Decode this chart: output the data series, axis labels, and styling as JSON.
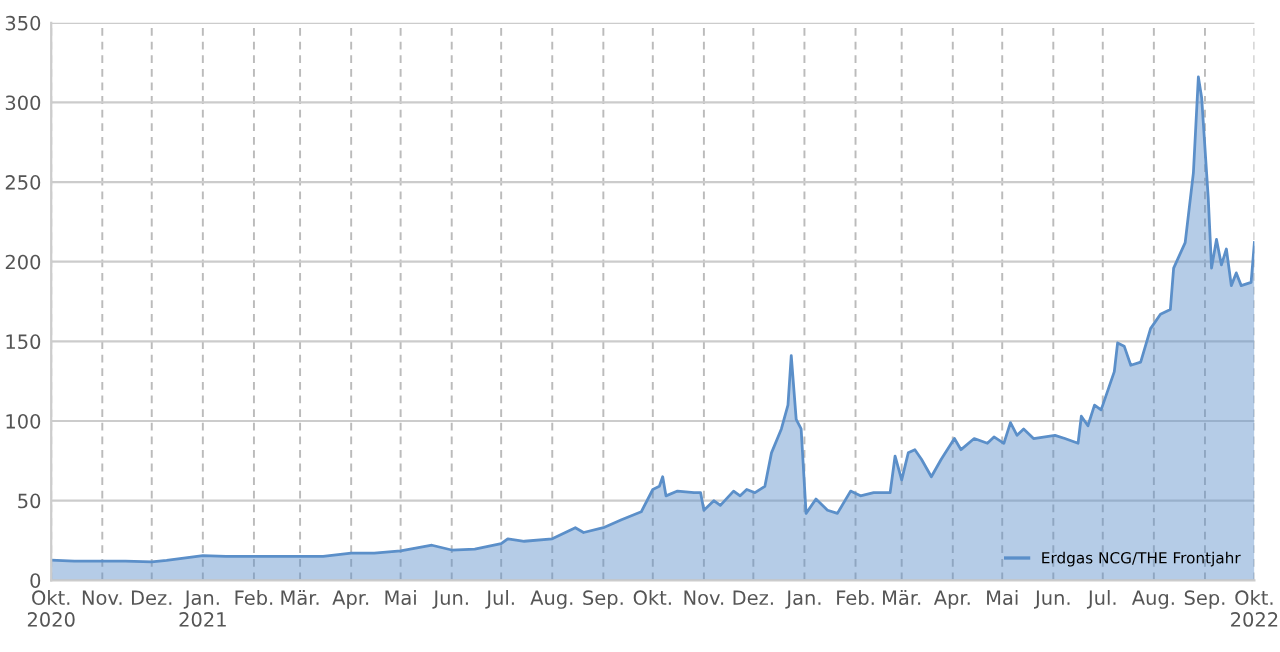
{
  "chart_data": {
    "type": "area",
    "legend": "bottom right",
    "grid": true,
    "xlim": [
      "2020-10-01",
      "2022-10-01"
    ],
    "xticks": [
      {
        "value": "2020-10-01",
        "label": "Okt.\n2020"
      },
      {
        "value": "2020-11-01",
        "label": "Nov."
      },
      {
        "value": "2020-12-01",
        "label": "Dez."
      },
      {
        "value": "2021-01-01",
        "label": "Jan.\n2021"
      },
      {
        "value": "2021-02-01",
        "label": "Feb."
      },
      {
        "value": "2021-03-01",
        "label": "Mär."
      },
      {
        "value": "2021-04-01",
        "label": "Apr."
      },
      {
        "value": "2021-05-01",
        "label": "Mai"
      },
      {
        "value": "2021-06-01",
        "label": "Jun."
      },
      {
        "value": "2021-07-01",
        "label": "Jul."
      },
      {
        "value": "2021-08-01",
        "label": "Aug."
      },
      {
        "value": "2021-09-01",
        "label": "Sep."
      },
      {
        "value": "2021-10-01",
        "label": "Okt."
      },
      {
        "value": "2021-11-01",
        "label": "Nov."
      },
      {
        "value": "2021-12-01",
        "label": "Dez."
      },
      {
        "value": "2022-01-01",
        "label": "Jan."
      },
      {
        "value": "2022-02-01",
        "label": "Feb."
      },
      {
        "value": "2022-03-01",
        "label": "Mär."
      },
      {
        "value": "2022-04-01",
        "label": "Apr."
      },
      {
        "value": "2022-05-01",
        "label": "Mai"
      },
      {
        "value": "2022-06-01",
        "label": "Jun."
      },
      {
        "value": "2022-07-01",
        "label": "Jul."
      },
      {
        "value": "2022-08-01",
        "label": "Aug."
      },
      {
        "value": "2022-09-01",
        "label": "Sep."
      },
      {
        "value": "2022-10-01",
        "label": "Okt.\n2022"
      }
    ],
    "ylim": [
      0,
      350
    ],
    "yticks": [
      0,
      50,
      100,
      150,
      200,
      250,
      300,
      350
    ],
    "series": [
      {
        "name": "Erdgas NCG/THE Frontjahr",
        "color": "#5b8fc9",
        "x": [
          "2020-10-01",
          "2020-10-15",
          "2020-11-01",
          "2020-11-15",
          "2020-12-01",
          "2020-12-10",
          "2021-01-01",
          "2021-01-15",
          "2021-02-01",
          "2021-03-01",
          "2021-03-15",
          "2021-04-01",
          "2021-04-15",
          "2021-05-01",
          "2021-05-20",
          "2021-06-01",
          "2021-06-15",
          "2021-07-01",
          "2021-07-05",
          "2021-07-15",
          "2021-08-01",
          "2021-08-15",
          "2021-08-20",
          "2021-09-01",
          "2021-09-12",
          "2021-09-24",
          "2021-10-01",
          "2021-10-05",
          "2021-10-07",
          "2021-10-09",
          "2021-10-16",
          "2021-10-26",
          "2021-10-30",
          "2021-11-01",
          "2021-11-07",
          "2021-11-11",
          "2021-11-19",
          "2021-11-23",
          "2021-11-27",
          "2021-12-02",
          "2021-12-08",
          "2021-12-12",
          "2021-12-18",
          "2021-12-22",
          "2021-12-24",
          "2021-12-27",
          "2021-12-30",
          "2022-01-02",
          "2022-01-08",
          "2022-01-15",
          "2022-01-21",
          "2022-01-29",
          "2022-02-04",
          "2022-02-12",
          "2022-02-22",
          "2022-02-25",
          "2022-03-01",
          "2022-03-05",
          "2022-03-09",
          "2022-03-13",
          "2022-03-19",
          "2022-03-25",
          "2022-04-02",
          "2022-04-06",
          "2022-04-14",
          "2022-04-22",
          "2022-04-26",
          "2022-05-02",
          "2022-05-06",
          "2022-05-10",
          "2022-05-14",
          "2022-05-20",
          "2022-06-02",
          "2022-06-08",
          "2022-06-16",
          "2022-06-18",
          "2022-06-22",
          "2022-06-26",
          "2022-06-30",
          "2022-07-08",
          "2022-07-10",
          "2022-07-14",
          "2022-07-18",
          "2022-07-24",
          "2022-07-30",
          "2022-08-05",
          "2022-08-11",
          "2022-08-13",
          "2022-08-20",
          "2022-08-25",
          "2022-08-28",
          "2022-08-30",
          "2022-09-03",
          "2022-09-05",
          "2022-09-08",
          "2022-09-11",
          "2022-09-14",
          "2022-09-17",
          "2022-09-20",
          "2022-09-23",
          "2022-09-29",
          "2022-10-01"
        ],
        "values": [
          12.6,
          12,
          12,
          12,
          11.5,
          12.5,
          15.5,
          15,
          15,
          15,
          15,
          17,
          17,
          18.5,
          22,
          19,
          19.5,
          23,
          26,
          24.5,
          26,
          33,
          30,
          33,
          38,
          43,
          57,
          59,
          65,
          53,
          56,
          55,
          55,
          44,
          50,
          47,
          56,
          53,
          57,
          55,
          59,
          80,
          95,
          110,
          141,
          101,
          95,
          42,
          51,
          44,
          42,
          56,
          53,
          55,
          55,
          78,
          63,
          80,
          82,
          76,
          65,
          76,
          89,
          82,
          89,
          86,
          90,
          86,
          99,
          91,
          95,
          89,
          91,
          89,
          86,
          103,
          97,
          110,
          107,
          131,
          149,
          147,
          135,
          137,
          158,
          167,
          170,
          196,
          212,
          256,
          316,
          303,
          240,
          196,
          214,
          198,
          208,
          185,
          193,
          185,
          187,
          212
        ]
      }
    ]
  }
}
